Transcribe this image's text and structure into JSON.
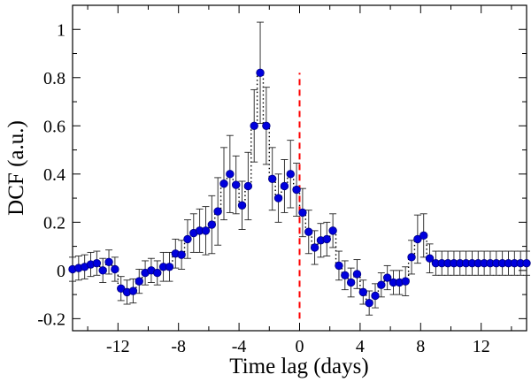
{
  "chart_data": {
    "type": "scatter",
    "title": "",
    "xlabel": "Time lag (days)",
    "ylabel": "DCF (a.u.)",
    "xlim": [
      -15,
      15
    ],
    "ylim": [
      -0.25,
      1.1
    ],
    "x_ticks": [
      -12,
      -8,
      -4,
      0,
      4,
      8,
      12
    ],
    "x_tick_labels": [
      "-12",
      "-8",
      "-4",
      "0",
      "4",
      "8",
      "12"
    ],
    "y_ticks": [
      -0.2,
      0,
      0.2,
      0.4,
      0.6,
      0.8,
      1
    ],
    "y_tick_labels": [
      "-0.2",
      "0",
      "0.2",
      "0.4",
      "0.6",
      "0.8",
      "1"
    ],
    "grid": false,
    "legend": "none",
    "marker_color": "#0000dd",
    "marker_edge_color": "#000080",
    "line_style": "dotted step line through points",
    "annotations": [
      {
        "type": "vertical-dashed-line",
        "x": 0,
        "y_from": -0.2,
        "y_to": 0.82,
        "color": "#ff0000"
      }
    ],
    "series": [
      {
        "name": "DCF",
        "x": [
          -15,
          -14.6,
          -14.2,
          -13.8,
          -13.4,
          -13,
          -12.6,
          -12.2,
          -11.8,
          -11.4,
          -11,
          -10.6,
          -10.2,
          -9.8,
          -9.4,
          -9,
          -8.6,
          -8.2,
          -7.8,
          -7.4,
          -7,
          -6.6,
          -6.2,
          -5.8,
          -5.4,
          -5,
          -4.6,
          -4.2,
          -3.8,
          -3.4,
          -3,
          -2.6,
          -2.2,
          -1.8,
          -1.4,
          -1,
          -0.6,
          -0.2,
          0.2,
          0.6,
          1,
          1.4,
          1.8,
          2.2,
          2.6,
          3,
          3.4,
          3.8,
          4.2,
          4.6,
          5,
          5.4,
          5.8,
          6.2,
          6.6,
          7,
          7.4,
          7.8,
          8.2,
          8.6,
          9,
          9.4,
          9.8,
          10.2,
          10.6,
          11,
          11.4,
          11.8,
          12.2,
          12.6,
          13,
          13.4,
          13.8,
          14.2,
          14.6,
          15
        ],
        "y": [
          0.005,
          0.01,
          0.015,
          0.025,
          0.03,
          0.0,
          0.035,
          0.005,
          -0.075,
          -0.09,
          -0.085,
          -0.045,
          -0.01,
          0.0,
          -0.01,
          0.015,
          0.015,
          0.07,
          0.065,
          0.13,
          0.155,
          0.165,
          0.165,
          0.19,
          0.245,
          0.36,
          0.4,
          0.355,
          0.27,
          0.35,
          0.6,
          0.82,
          0.6,
          0.38,
          0.3,
          0.35,
          0.4,
          0.335,
          0.24,
          0.16,
          0.095,
          0.125,
          0.13,
          0.165,
          0.02,
          -0.02,
          -0.05,
          -0.015,
          -0.09,
          -0.135,
          -0.105,
          -0.06,
          -0.03,
          -0.05,
          -0.05,
          -0.045,
          0.055,
          0.13,
          0.145,
          0.05,
          0.03,
          0.03,
          0.03,
          0.03,
          0.03,
          0.03,
          0.03,
          0.03,
          0.03,
          0.03,
          0.03,
          0.03,
          0.03,
          0.03,
          0.03,
          0.03
        ],
        "err": [
          0.05,
          0.05,
          0.05,
          0.05,
          0.05,
          0.05,
          0.05,
          0.05,
          0.05,
          0.05,
          0.05,
          0.05,
          0.05,
          0.05,
          0.05,
          0.06,
          0.06,
          0.06,
          0.06,
          0.08,
          0.08,
          0.09,
          0.1,
          0.12,
          0.14,
          0.15,
          0.16,
          0.12,
          0.1,
          0.14,
          0.15,
          0.21,
          0.16,
          0.13,
          0.1,
          0.11,
          0.14,
          0.11,
          0.1,
          0.09,
          0.07,
          0.07,
          0.07,
          0.07,
          0.06,
          0.06,
          0.06,
          0.06,
          0.05,
          0.05,
          0.05,
          0.05,
          0.05,
          0.05,
          0.05,
          0.06,
          0.07,
          0.1,
          0.09,
          0.06,
          0.05,
          0.05,
          0.05,
          0.05,
          0.05,
          0.05,
          0.05,
          0.05,
          0.05,
          0.05,
          0.05,
          0.05,
          0.05,
          0.05,
          0.05,
          0.05
        ]
      }
    ]
  }
}
